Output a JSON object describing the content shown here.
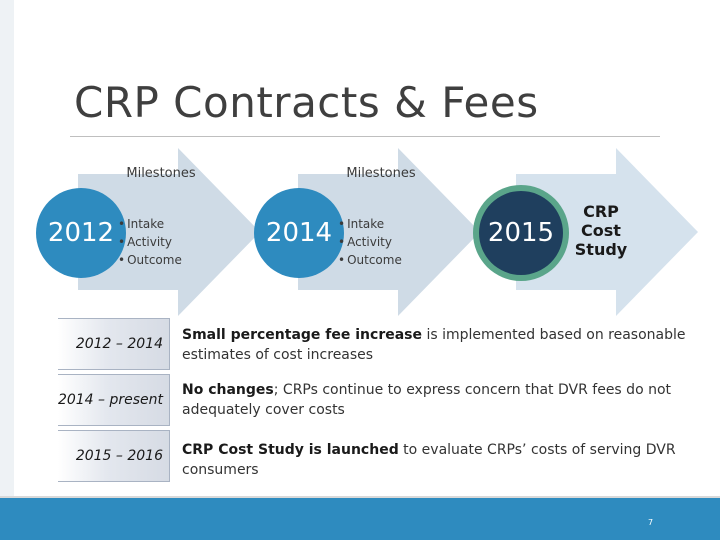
{
  "slide": {
    "title": "CRP Contracts & Fees",
    "page_number": "7"
  },
  "timeline": {
    "stage1": {
      "year": "2012",
      "heading": "Milestones",
      "items": [
        "Intake",
        "Activity",
        "Outcome"
      ]
    },
    "stage2": {
      "year": "2014",
      "heading": "Milestones",
      "items": [
        "Intake",
        "Activity",
        "Outcome"
      ]
    },
    "stage3": {
      "year": "2015",
      "label_line1": "CRP",
      "label_line2": "Cost",
      "label_line3": "Study"
    }
  },
  "rows": [
    {
      "period": "2012 – 2014",
      "bold": "Small percentage fee increase",
      "rest": " is implemented based on reasonable estimates of cost increases"
    },
    {
      "period": "2014 – present",
      "bold": "No changes",
      "rest": "; CRPs continue to express concern that DVR fees do not adequately cover costs"
    },
    {
      "period": "2015 – 2016",
      "bold": "CRP Cost Study is launched",
      "rest": " to evaluate CRPs’ costs of serving DVR consumers"
    }
  ],
  "colors": {
    "circle_blue": "#2e8bbf",
    "circle_dark": "#1f3f5e",
    "circle_ring": "#5aa58a",
    "arrow_fill": "#cfdbe6",
    "footer": "#2e8bbf"
  }
}
